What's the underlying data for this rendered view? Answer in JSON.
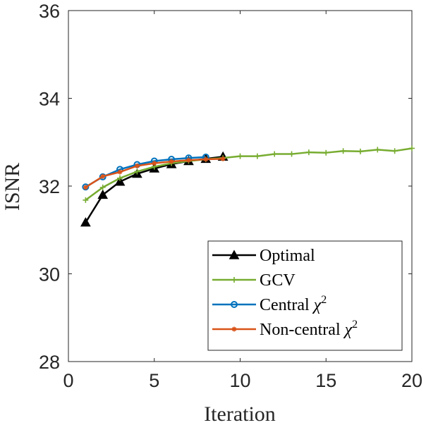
{
  "chart_data": {
    "type": "line",
    "title": "",
    "xlabel": "Iteration",
    "ylabel": "ISNR",
    "xlim": [
      0,
      20
    ],
    "ylim": [
      28,
      36
    ],
    "xticks": [
      0,
      5,
      10,
      15,
      20
    ],
    "yticks": [
      28,
      30,
      32,
      34,
      36
    ],
    "xtick_labels": [
      "0",
      "5",
      "10",
      "15",
      "20"
    ],
    "ytick_labels": [
      "28",
      "30",
      "32",
      "34",
      "36"
    ],
    "grid": false,
    "legend_position": "bottom-right",
    "series": [
      {
        "name": "Optimal",
        "legend_label": "Optimal",
        "color": "#000000",
        "marker": "triangle",
        "x": [
          1,
          2,
          3,
          4,
          5,
          6,
          7,
          8,
          9
        ],
        "values": [
          31.17,
          31.8,
          32.1,
          32.28,
          32.4,
          32.5,
          32.57,
          32.62,
          32.67
        ]
      },
      {
        "name": "GCV",
        "legend_label": "GCV",
        "color": "#77ac30",
        "marker": "plus",
        "x": [
          1,
          2,
          3,
          4,
          5,
          6,
          7,
          8,
          9,
          10,
          11,
          12,
          13,
          14,
          15,
          16,
          17,
          18,
          19,
          20
        ],
        "values": [
          31.68,
          31.97,
          32.18,
          32.33,
          32.44,
          32.52,
          32.57,
          32.61,
          32.64,
          32.68,
          32.68,
          32.73,
          32.73,
          32.77,
          32.76,
          32.8,
          32.79,
          32.83,
          32.8,
          32.86
        ]
      },
      {
        "name": "Central chi2",
        "legend_label": "Central",
        "legend_symbol": "χ",
        "legend_superscript": "2",
        "color": "#0072bd",
        "marker": "circle",
        "x": [
          1,
          2,
          3,
          4,
          5,
          6,
          7,
          8
        ],
        "values": [
          31.98,
          32.21,
          32.38,
          32.49,
          32.57,
          32.61,
          32.64,
          32.66
        ]
      },
      {
        "name": "Non-central chi2",
        "legend_label": "Non-central",
        "legend_symbol": "χ",
        "legend_superscript": "2",
        "color": "#d95319",
        "marker": "star",
        "x": [
          1,
          2,
          3,
          4,
          5,
          6,
          7,
          8,
          9
        ],
        "values": [
          31.97,
          32.22,
          32.32,
          32.46,
          32.52,
          32.56,
          32.59,
          32.61,
          32.62
        ]
      }
    ]
  }
}
